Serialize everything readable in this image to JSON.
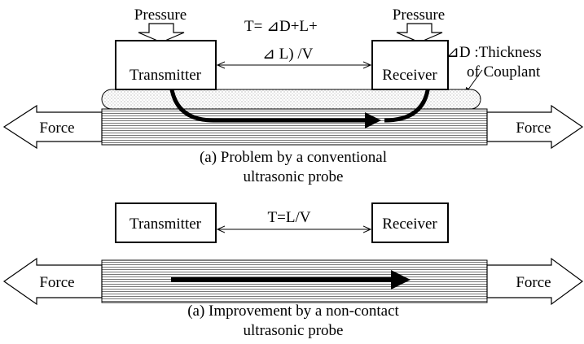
{
  "top": {
    "pressure_left": "Pressure",
    "pressure_right": "Pressure",
    "formula_line1": "T=  ⊿D+L+",
    "formula_line2": "⊿ L) /V",
    "note_line1": "⊿D :Thickness",
    "note_line2": "of Couplant",
    "transmitter": "Transmitter",
    "receiver": "Receiver",
    "force_left": "Force",
    "force_right": "Force",
    "caption_line1": "(a) Problem by a conventional",
    "caption_line2": "ultrasonic probe"
  },
  "bottom": {
    "formula": "T=L/V",
    "transmitter": "Transmitter",
    "receiver": "Receiver",
    "force_left": "Force",
    "force_right": "Force",
    "caption_line1": "(a) Improvement by a non-contact",
    "caption_line2": "ultrasonic probe"
  }
}
